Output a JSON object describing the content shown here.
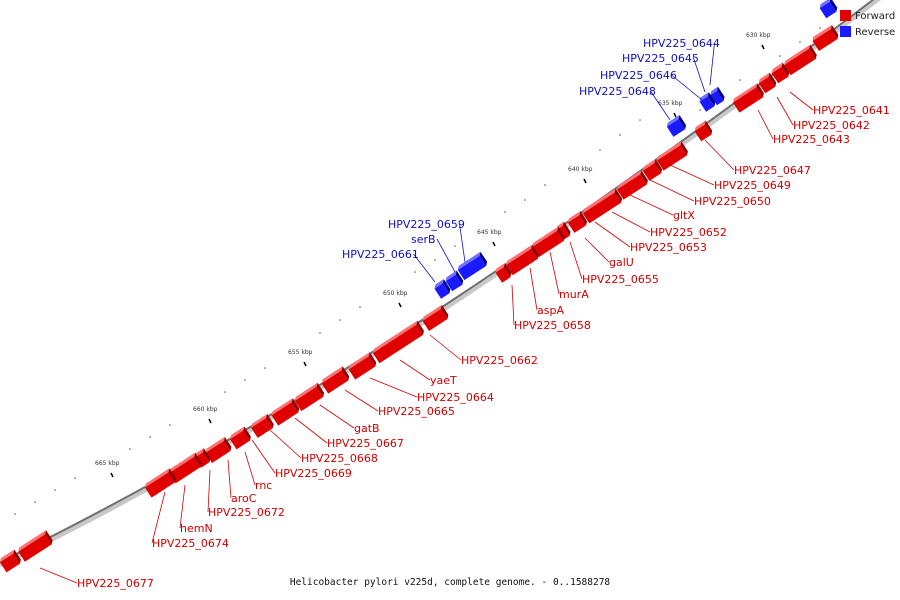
{
  "caption": "Helicobacter pylori v225d, complete genome. - 0..1588278",
  "legend": {
    "forward_label": "Forward",
    "reverse_label": "Reverse",
    "forward_color": "#e00000",
    "reverse_color": "#1a1aff"
  },
  "ticks": [
    "630 kbp",
    "635 kbp",
    "640 kbp",
    "645 kbp",
    "650 kbp",
    "655 kbp",
    "660 kbp",
    "665 kbp"
  ],
  "gene_labels": [
    {
      "text": "HPV225_0644",
      "strand": "reverse"
    },
    {
      "text": "HPV225_0645",
      "strand": "reverse"
    },
    {
      "text": "HPV225_0646",
      "strand": "reverse"
    },
    {
      "text": "HPV225_0648",
      "strand": "reverse"
    },
    {
      "text": "HPV225_0641",
      "strand": "forward"
    },
    {
      "text": "HPV225_0642",
      "strand": "forward"
    },
    {
      "text": "HPV225_0643",
      "strand": "forward"
    },
    {
      "text": "HPV225_0647",
      "strand": "forward"
    },
    {
      "text": "HPV225_0649",
      "strand": "forward"
    },
    {
      "text": "HPV225_0650",
      "strand": "forward"
    },
    {
      "text": "gltX",
      "strand": "forward"
    },
    {
      "text": "HPV225_0652",
      "strand": "forward"
    },
    {
      "text": "HPV225_0653",
      "strand": "forward"
    },
    {
      "text": "galU",
      "strand": "forward"
    },
    {
      "text": "HPV225_0655",
      "strand": "forward"
    },
    {
      "text": "murA",
      "strand": "forward"
    },
    {
      "text": "aspA",
      "strand": "forward"
    },
    {
      "text": "HPV225_0658",
      "strand": "forward"
    },
    {
      "text": "HPV225_0659",
      "strand": "reverse"
    },
    {
      "text": "serB",
      "strand": "reverse"
    },
    {
      "text": "HPV225_0661",
      "strand": "reverse"
    },
    {
      "text": "HPV225_0662",
      "strand": "forward"
    },
    {
      "text": "yaeT",
      "strand": "forward"
    },
    {
      "text": "HPV225_0664",
      "strand": "forward"
    },
    {
      "text": "HPV225_0665",
      "strand": "forward"
    },
    {
      "text": "gatB",
      "strand": "forward"
    },
    {
      "text": "HPV225_0667",
      "strand": "forward"
    },
    {
      "text": "HPV225_0668",
      "strand": "forward"
    },
    {
      "text": "HPV225_0669",
      "strand": "forward"
    },
    {
      "text": "rnc",
      "strand": "forward"
    },
    {
      "text": "aroC",
      "strand": "forward"
    },
    {
      "text": "HPV225_0672",
      "strand": "forward"
    },
    {
      "text": "hemN",
      "strand": "forward"
    },
    {
      "text": "HPV225_0674",
      "strand": "forward"
    },
    {
      "text": "HPV225_0677",
      "strand": "forward"
    }
  ]
}
